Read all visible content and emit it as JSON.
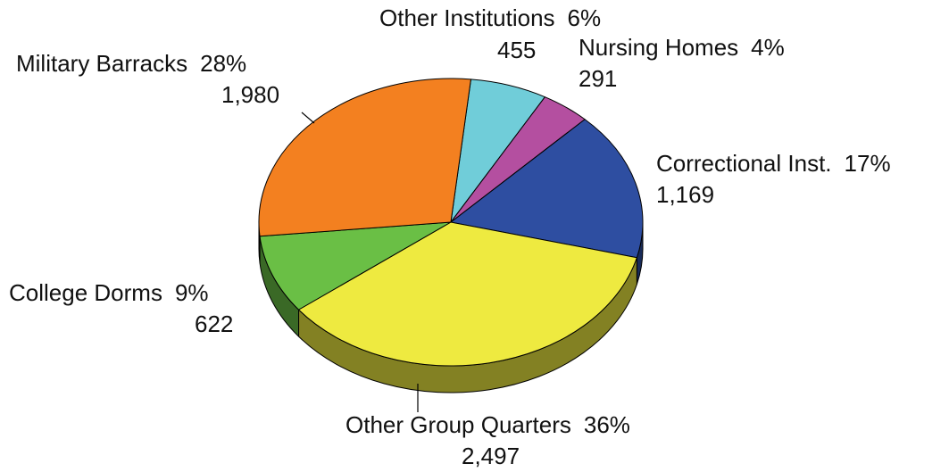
{
  "chart_data": {
    "type": "pie3d",
    "categories": [
      "Other Institutions",
      "Nursing Homes",
      "Correctional Inst.",
      "Other Group Quarters",
      "College Dorms",
      "Military Barracks"
    ],
    "values": [
      455,
      291,
      1169,
      2497,
      622,
      1980
    ],
    "value_labels": [
      "455",
      "291",
      "1,169",
      "2,497",
      "622",
      "1,980"
    ],
    "percent_labels": [
      "6%",
      "4%",
      "17%",
      "36%",
      "9%",
      "28%"
    ],
    "colors": [
      "#70cdd9",
      "#b44fa0",
      "#2e4ea1",
      "#eeea40",
      "#6abf45",
      "#f38020"
    ]
  }
}
